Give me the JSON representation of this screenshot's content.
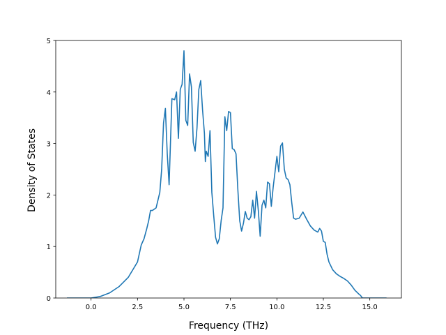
{
  "chart_data": {
    "type": "line",
    "title": "",
    "xlabel": "Frequency (THz)",
    "ylabel": "Density of States",
    "xlim": [
      -1.9,
      16.7
    ],
    "ylim": [
      0,
      5
    ],
    "xticks": [
      0.0,
      2.5,
      5.0,
      7.5,
      10.0,
      12.5,
      15.0
    ],
    "xtick_labels": [
      "0.0",
      "2.5",
      "5.0",
      "7.5",
      "10.0",
      "12.5",
      "15.0"
    ],
    "yticks": [
      0,
      1,
      2,
      3,
      4,
      5
    ],
    "ytick_labels": [
      "0",
      "1",
      "2",
      "3",
      "4",
      "5"
    ],
    "grid": false,
    "legend": "none",
    "line_color": "#1f77b4",
    "series": [
      {
        "x": [
          -1.3,
          0.0,
          0.5,
          1.0,
          1.5,
          2.0,
          2.5,
          2.7,
          2.85,
          3.0,
          3.1,
          3.2,
          3.3,
          3.5,
          3.7,
          3.8,
          3.9,
          4.0,
          4.1,
          4.2,
          4.35,
          4.5,
          4.6,
          4.7,
          4.8,
          4.9,
          5.0,
          5.1,
          5.2,
          5.3,
          5.4,
          5.5,
          5.6,
          5.7,
          5.8,
          5.9,
          6.0,
          6.1,
          6.15,
          6.2,
          6.3,
          6.4,
          6.5,
          6.6,
          6.7,
          6.8,
          6.9,
          7.0,
          7.1,
          7.2,
          7.3,
          7.4,
          7.5,
          7.6,
          7.7,
          7.8,
          7.9,
          8.0,
          8.1,
          8.2,
          8.3,
          8.4,
          8.5,
          8.6,
          8.7,
          8.8,
          8.9,
          9.0,
          9.1,
          9.2,
          9.3,
          9.4,
          9.5,
          9.6,
          9.7,
          9.8,
          9.9,
          10.0,
          10.1,
          10.2,
          10.3,
          10.4,
          10.5,
          10.6,
          10.7,
          10.8,
          10.9,
          11.0,
          11.2,
          11.4,
          11.6,
          11.8,
          12.0,
          12.1,
          12.2,
          12.3,
          12.4,
          12.5,
          12.6,
          12.7,
          12.8,
          13.0,
          13.2,
          13.4,
          13.6,
          13.8,
          14.0,
          14.2,
          14.4,
          14.5,
          14.6,
          15.0,
          15.9
        ],
        "y": [
          0,
          0,
          0.03,
          0.1,
          0.22,
          0.4,
          0.7,
          1.03,
          1.15,
          1.35,
          1.5,
          1.7,
          1.7,
          1.75,
          2.05,
          2.5,
          3.4,
          3.68,
          2.8,
          2.2,
          3.87,
          3.85,
          4.0,
          3.1,
          4.05,
          4.15,
          4.8,
          3.45,
          3.35,
          4.35,
          4.1,
          3.02,
          2.85,
          3.3,
          4.05,
          4.22,
          3.65,
          3.2,
          2.65,
          2.85,
          2.75,
          3.25,
          2.05,
          1.6,
          1.18,
          1.05,
          1.15,
          1.5,
          1.75,
          3.52,
          3.25,
          3.62,
          3.6,
          2.9,
          2.88,
          2.8,
          2.1,
          1.5,
          1.3,
          1.45,
          1.68,
          1.55,
          1.52,
          1.58,
          1.9,
          1.55,
          2.07,
          1.7,
          1.2,
          1.8,
          1.9,
          1.75,
          2.25,
          2.22,
          1.78,
          2.15,
          2.45,
          2.75,
          2.45,
          2.95,
          3.01,
          2.5,
          2.33,
          2.3,
          2.2,
          1.85,
          1.55,
          1.53,
          1.55,
          1.67,
          1.53,
          1.4,
          1.32,
          1.3,
          1.28,
          1.35,
          1.3,
          1.1,
          1.08,
          0.85,
          0.7,
          0.55,
          0.47,
          0.42,
          0.38,
          0.33,
          0.25,
          0.15,
          0.08,
          0.05,
          0,
          0,
          0
        ]
      }
    ]
  }
}
